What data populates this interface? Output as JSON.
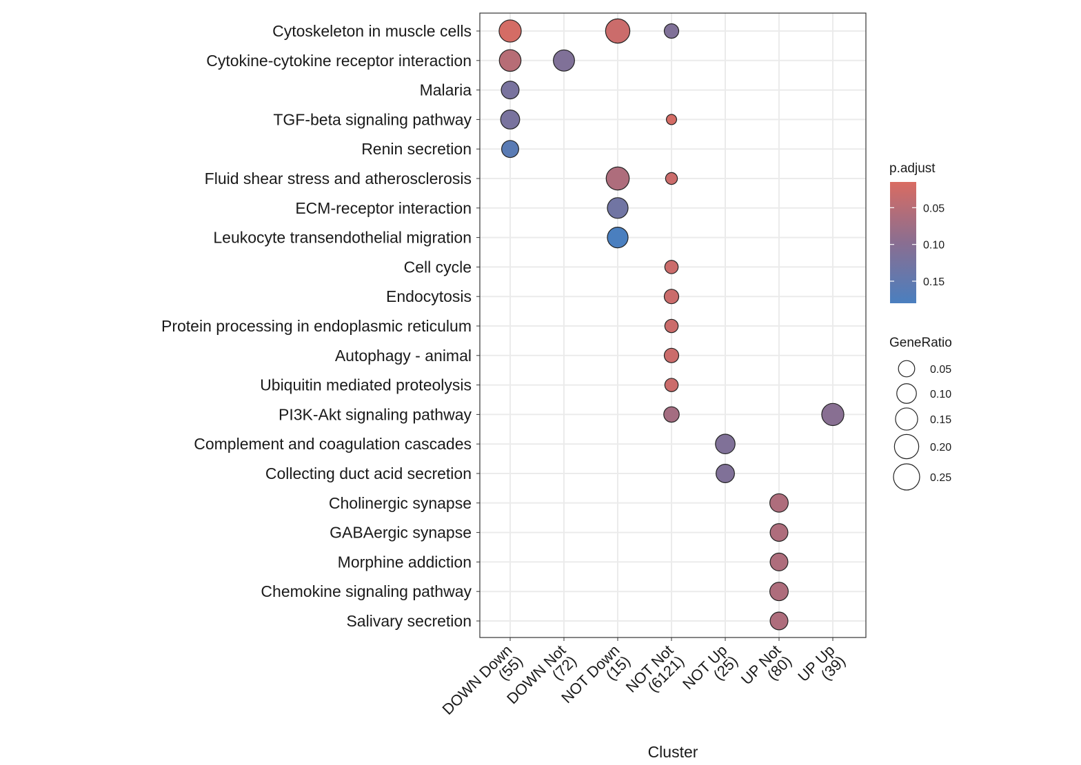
{
  "chart_data": {
    "type": "dotplot",
    "xlabel": "Cluster",
    "ylabel": "",
    "grid": true,
    "x_categories": [
      [
        "DOWN Down",
        "(55)"
      ],
      [
        "DOWN Not",
        "(72)"
      ],
      [
        "NOT Down",
        "(15)"
      ],
      [
        "NOT Not",
        "(6121)"
      ],
      [
        "NOT Up",
        "(25)"
      ],
      [
        "UP Not",
        "(80)"
      ],
      [
        "UP Up",
        "(39)"
      ]
    ],
    "y_categories": [
      "Cytoskeleton in muscle cells",
      "Cytokine-cytokine receptor interaction",
      "Malaria",
      "TGF-beta signaling pathway",
      "Renin secretion",
      "Fluid shear stress and atherosclerosis",
      "ECM-receptor interaction",
      "Leukocyte transendothelial migration",
      "Cell cycle",
      "Endocytosis",
      "Protein processing in endoplasmic reticulum",
      "Autophagy - animal",
      "Ubiquitin mediated proteolysis",
      "PI3K-Akt signaling pathway",
      "Complement and coagulation cascades",
      "Collecting duct acid secretion",
      "Cholinergic synapse",
      "GABAergic synapse",
      "Morphine addiction",
      "Chemokine signaling pathway",
      "Salivary secretion"
    ],
    "points": [
      {
        "x": 0,
        "y": 0,
        "gene_ratio": 0.15,
        "p_adjust": 0.02
      },
      {
        "x": 2,
        "y": 0,
        "gene_ratio": 0.2,
        "p_adjust": 0.03
      },
      {
        "x": 3,
        "y": 0,
        "gene_ratio": 0.03,
        "p_adjust": 0.11
      },
      {
        "x": 0,
        "y": 1,
        "gene_ratio": 0.14,
        "p_adjust": 0.05
      },
      {
        "x": 1,
        "y": 1,
        "gene_ratio": 0.13,
        "p_adjust": 0.11
      },
      {
        "x": 0,
        "y": 2,
        "gene_ratio": 0.07,
        "p_adjust": 0.12
      },
      {
        "x": 0,
        "y": 3,
        "gene_ratio": 0.09,
        "p_adjust": 0.12
      },
      {
        "x": 3,
        "y": 3,
        "gene_ratio": 0.003,
        "p_adjust": 0.02
      },
      {
        "x": 0,
        "y": 4,
        "gene_ratio": 0.06,
        "p_adjust": 0.16
      },
      {
        "x": 2,
        "y": 5,
        "gene_ratio": 0.17,
        "p_adjust": 0.06
      },
      {
        "x": 3,
        "y": 5,
        "gene_ratio": 0.01,
        "p_adjust": 0.03
      },
      {
        "x": 2,
        "y": 6,
        "gene_ratio": 0.12,
        "p_adjust": 0.13
      },
      {
        "x": 2,
        "y": 7,
        "gene_ratio": 0.12,
        "p_adjust": 0.18
      },
      {
        "x": 3,
        "y": 8,
        "gene_ratio": 0.02,
        "p_adjust": 0.03
      },
      {
        "x": 3,
        "y": 9,
        "gene_ratio": 0.03,
        "p_adjust": 0.03
      },
      {
        "x": 3,
        "y": 10,
        "gene_ratio": 0.02,
        "p_adjust": 0.03
      },
      {
        "x": 3,
        "y": 11,
        "gene_ratio": 0.03,
        "p_adjust": 0.03
      },
      {
        "x": 3,
        "y": 12,
        "gene_ratio": 0.02,
        "p_adjust": 0.03
      },
      {
        "x": 3,
        "y": 13,
        "gene_ratio": 0.04,
        "p_adjust": 0.07
      },
      {
        "x": 6,
        "y": 13,
        "gene_ratio": 0.15,
        "p_adjust": 0.1
      },
      {
        "x": 4,
        "y": 14,
        "gene_ratio": 0.1,
        "p_adjust": 0.11
      },
      {
        "x": 4,
        "y": 15,
        "gene_ratio": 0.08,
        "p_adjust": 0.11
      },
      {
        "x": 5,
        "y": 16,
        "gene_ratio": 0.08,
        "p_adjust": 0.06
      },
      {
        "x": 5,
        "y": 17,
        "gene_ratio": 0.07,
        "p_adjust": 0.06
      },
      {
        "x": 5,
        "y": 18,
        "gene_ratio": 0.07,
        "p_adjust": 0.06
      },
      {
        "x": 5,
        "y": 19,
        "gene_ratio": 0.08,
        "p_adjust": 0.06
      },
      {
        "x": 5,
        "y": 20,
        "gene_ratio": 0.07,
        "p_adjust": 0.06
      }
    ],
    "color_legend": {
      "title": "p.adjust",
      "low_color": "#d96c62",
      "mid_color": "#8a6e91",
      "high_color": "#4a7fbf",
      "domain": [
        0.015,
        0.18
      ],
      "breaks": [
        0.05,
        0.1,
        0.15
      ],
      "break_labels": [
        "0.05",
        "0.10",
        "0.15"
      ]
    },
    "size_legend": {
      "title": "GeneRatio",
      "domain": [
        0.0,
        0.25
      ],
      "breaks": [
        0.05,
        0.1,
        0.15,
        0.2,
        0.25
      ],
      "break_labels": [
        "0.05",
        "0.10",
        "0.15",
        "0.20",
        "0.25"
      ]
    }
  }
}
